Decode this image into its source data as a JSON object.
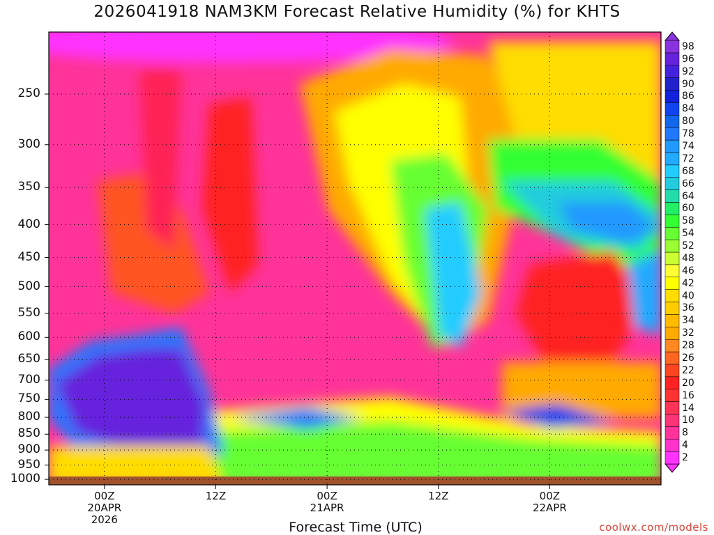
{
  "chart_data": {
    "type": "heatmap",
    "title": "2026041918 NAM3KM Forecast Relative Humidity (%) for KHTS",
    "xlabel": "Forecast Time (UTC)",
    "ylabel": "",
    "y_axis": {
      "scale": "log-pressure",
      "inverted": true,
      "ticks": [
        250,
        300,
        350,
        400,
        450,
        500,
        550,
        600,
        650,
        700,
        750,
        800,
        850,
        900,
        950,
        1000
      ],
      "tick_labels": [
        "250",
        "300",
        "350",
        "400",
        "450",
        "500",
        "550",
        "600",
        "650",
        "700",
        "750",
        "800",
        "850",
        "900",
        "950",
        "1000"
      ],
      "range": [
        200,
        1020
      ]
    },
    "x_axis": {
      "range": [
        "2026-04-19 18Z",
        "2026-04-22 12Z"
      ],
      "ticks": [
        {
          "line1": "00Z",
          "line2": "20APR",
          "line3": "2026"
        },
        {
          "line1": "12Z",
          "line2": "",
          "line3": ""
        },
        {
          "line1": "00Z",
          "line2": "21APR",
          "line3": ""
        },
        {
          "line1": "12Z",
          "line2": "",
          "line3": ""
        },
        {
          "line1": "00Z",
          "line2": "22APR",
          "line3": ""
        }
      ]
    },
    "grid": true,
    "colorbar": {
      "levels": [
        2,
        4,
        8,
        10,
        14,
        16,
        20,
        22,
        26,
        28,
        32,
        34,
        36,
        40,
        42,
        46,
        48,
        52,
        54,
        58,
        60,
        64,
        66,
        68,
        72,
        74,
        78,
        80,
        84,
        86,
        90,
        92,
        96,
        98
      ],
      "colors": [
        "#ff33ff",
        "#ff33cc",
        "#ff3399",
        "#ff3377",
        "#ff3355",
        "#ff3333",
        "#ff2222",
        "#ff4422",
        "#ff6622",
        "#ff8822",
        "#ffaa00",
        "#ffbb00",
        "#ffcc00",
        "#ffdd00",
        "#ffff00",
        "#ffff33",
        "#ccff33",
        "#99ff33",
        "#66ff33",
        "#33ff33",
        "#22ee66",
        "#22ddaa",
        "#22ccdd",
        "#22ccff",
        "#22aaff",
        "#2299ff",
        "#2277ff",
        "#1166ee",
        "#1144ee",
        "#1122dd",
        "#2222cc",
        "#4422dd",
        "#6622dd",
        "#8833dd"
      ]
    },
    "surface_color": "#a0522d",
    "credit": "coolwx.com/models"
  }
}
